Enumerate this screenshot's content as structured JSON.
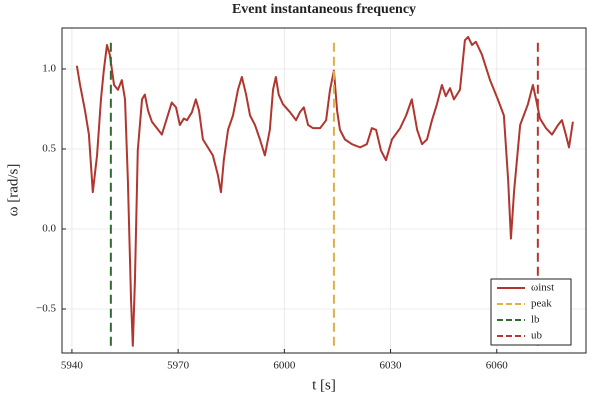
{
  "chart_data": {
    "type": "line",
    "title": "Event instantaneous frequency",
    "x_label": "t [s]",
    "y_label": "ω [rad/s]",
    "xlim": [
      5937.2,
      6085.2
    ],
    "ylim": [
      -0.775,
      1.256
    ],
    "xticks": [
      5940,
      5970,
      6000,
      6030,
      6060
    ],
    "yticks": [
      {
        "value": -0.5,
        "label": "−0.5"
      },
      {
        "value": 0,
        "label": "0.0"
      },
      {
        "value": 0.5,
        "label": "0.5"
      },
      {
        "value": 1,
        "label": "1.0"
      }
    ],
    "grid": true,
    "legend": "bottom-right",
    "series": [
      {
        "name": "ωinst",
        "color": "#b0362f",
        "dashed": false,
        "x": [
          5941.4,
          5942.3,
          5943.7,
          5944.8,
          5945.9,
          5947.1,
          5948.2,
          5949.0,
          5949.9,
          5950.7,
          5951.9,
          5953.0,
          5954.1,
          5955.0,
          5955.8,
          5956.7,
          5957.2,
          5957.8,
          5958.6,
          5959.8,
          5960.6,
          5961.5,
          5962.6,
          5964.0,
          5965.4,
          5966.8,
          5968.2,
          5969.4,
          5970.5,
          5971.6,
          5972.5,
          5973.9,
          5975.0,
          5975.9,
          5977.0,
          5978.4,
          5979.8,
          5981.2,
          5982.1,
          5982.9,
          5984.1,
          5985.5,
          5986.9,
          5988.0,
          5989.2,
          5990.3,
          5991.7,
          5993.1,
          5994.5,
          5995.9,
          5996.8,
          5997.6,
          5998.4,
          5999.6,
          6001.6,
          6003.3,
          6004.4,
          6005.5,
          6006.7,
          6008.1,
          6010.1,
          6011.8,
          6012.9,
          6014.0,
          6014.9,
          6015.7,
          6017.1,
          6019.1,
          6021.4,
          6023.3,
          6024.7,
          6025.9,
          6027.3,
          6028.7,
          6030.4,
          6032.7,
          6034.4,
          6036.0,
          6037.5,
          6038.9,
          6040.3,
          6041.7,
          6043.1,
          6044.5,
          6045.6,
          6046.8,
          6047.9,
          6049.6,
          6051.0,
          6051.9,
          6053.0,
          6054.1,
          6055.8,
          6058.1,
          6060.3,
          6062.0,
          6063.2,
          6064.0,
          6064.9,
          6066.6,
          6068.8,
          6070.2,
          6071.1,
          6072.2,
          6073.9,
          6075.6,
          6077.3,
          6078.4,
          6079.5,
          6080.4,
          6081.5
        ],
        "values": [
          1.02,
          0.9,
          0.74,
          0.59,
          0.23,
          0.46,
          0.81,
          0.99,
          1.15,
          1.09,
          0.9,
          0.87,
          0.93,
          0.81,
          0.31,
          -0.44,
          -0.73,
          -0.32,
          0.49,
          0.81,
          0.84,
          0.74,
          0.67,
          0.63,
          0.59,
          0.69,
          0.79,
          0.76,
          0.65,
          0.69,
          0.68,
          0.73,
          0.81,
          0.74,
          0.56,
          0.51,
          0.46,
          0.34,
          0.23,
          0.43,
          0.62,
          0.71,
          0.87,
          0.95,
          0.84,
          0.71,
          0.65,
          0.56,
          0.46,
          0.62,
          0.87,
          0.95,
          0.84,
          0.78,
          0.73,
          0.68,
          0.73,
          0.76,
          0.65,
          0.63,
          0.63,
          0.68,
          0.87,
          0.99,
          0.74,
          0.62,
          0.56,
          0.53,
          0.51,
          0.53,
          0.63,
          0.62,
          0.49,
          0.43,
          0.56,
          0.63,
          0.71,
          0.81,
          0.62,
          0.53,
          0.56,
          0.68,
          0.78,
          0.9,
          0.83,
          0.88,
          0.81,
          0.87,
          1.18,
          1.2,
          1.15,
          1.17,
          1.09,
          0.93,
          0.81,
          0.71,
          0.31,
          -0.06,
          0.24,
          0.65,
          0.78,
          0.9,
          0.81,
          0.69,
          0.63,
          0.59,
          0.65,
          0.68,
          0.59,
          0.51,
          0.67
        ]
      },
      {
        "name": "peak",
        "color": "#e0b042",
        "dashed": true,
        "x": [
          6014.0,
          6014.0
        ],
        "values": [
          -0.73,
          1.19
        ]
      },
      {
        "name": "lb",
        "color": "#2f6b2f",
        "dashed": true,
        "x": [
          5951.0,
          5951.0
        ],
        "values": [
          -0.73,
          1.19
        ]
      },
      {
        "name": "ub",
        "color": "#b5362f",
        "dashed": true,
        "x": [
          6071.6,
          6071.6
        ],
        "values": [
          -0.73,
          1.19
        ]
      }
    ]
  }
}
